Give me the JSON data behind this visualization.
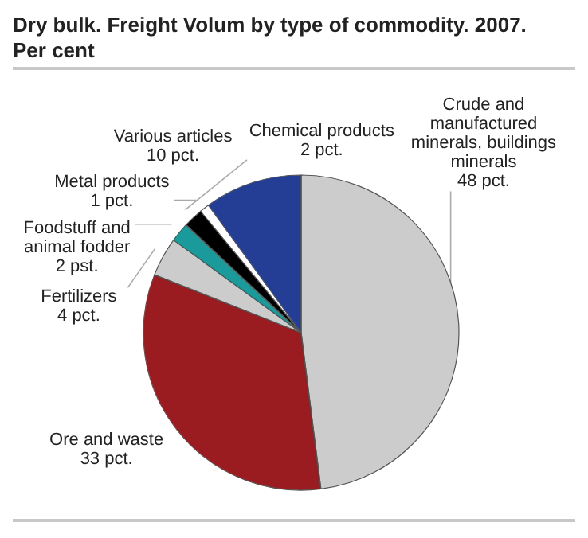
{
  "chart_data": {
    "type": "pie",
    "title": "Dry bulk. Freight Volum by type of commodity. 2007.",
    "subtitle": "Per cent",
    "categories": [
      "Crude and manufactured minerals, buildings minerals",
      "Ore and waste",
      "Fertilizers",
      "Foodstuff and animal fodder",
      "Chemical products",
      "Metal products",
      "Various articles"
    ],
    "values": [
      48,
      33,
      4,
      2,
      2,
      1,
      10
    ],
    "value_labels": [
      "48 pct.",
      "33 pct.",
      "4 pct.",
      "2 pst.",
      "2 pct.",
      "1 pct.",
      "10 pct."
    ],
    "colors": [
      "#cccccc",
      "#9b1c20",
      "#cccccc",
      "#1a9a9a",
      "#000000",
      "#ffffff",
      "#233e94"
    ]
  }
}
